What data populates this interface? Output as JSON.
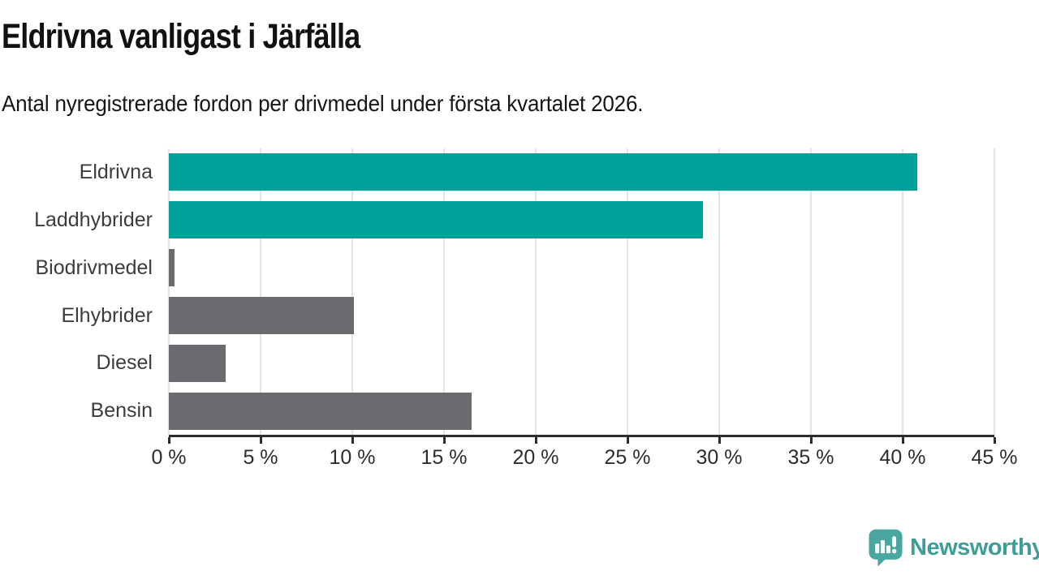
{
  "header": {
    "title": "Eldrivna vanligast i Järfälla",
    "subtitle": "Antal nyregistrerade fordon per drivmedel under första kvartalet 2026."
  },
  "chart_data": {
    "type": "bar",
    "orientation": "horizontal",
    "title": "Eldrivna vanligast i Järfälla",
    "subtitle": "Antal nyregistrerade fordon per drivmedel under första kvartalet 2026.",
    "categories": [
      "Eldrivna",
      "Laddhybrider",
      "Biodrivmedel",
      "Elhybrider",
      "Diesel",
      "Bensin"
    ],
    "values": [
      40.8,
      29.1,
      0.3,
      10.1,
      3.1,
      16.5
    ],
    "unit": "%",
    "bar_colors": [
      "#00a09a",
      "#00a09a",
      "#6b6b6f",
      "#6b6b6f",
      "#6b6b6f",
      "#6b6b6f"
    ],
    "xlim": [
      0,
      45
    ],
    "x_tick_values": [
      0,
      5,
      10,
      15,
      20,
      25,
      30,
      35,
      40,
      45
    ],
    "x_ticks": [
      "0 %",
      "5 %",
      "10 %",
      "15 %",
      "20 %",
      "25 %",
      "30 %",
      "35 %",
      "40 %",
      "45 %"
    ],
    "grid": "vertical",
    "legend": "none",
    "xlabel": "",
    "ylabel": ""
  },
  "footer": {
    "brand": "Newsworthy",
    "logo_icon": "speech-bubble-bar-chart-icon"
  },
  "colors": {
    "highlight_teal": "#00a09a",
    "neutral_gray": "#6b6b6f",
    "gridline": "#e3e3e3",
    "axis": "#2d2d2d",
    "label_text": "#3c3c3c",
    "brand_teal": "#3e9d97",
    "brand_icon_teal": "#4aa6a0"
  }
}
